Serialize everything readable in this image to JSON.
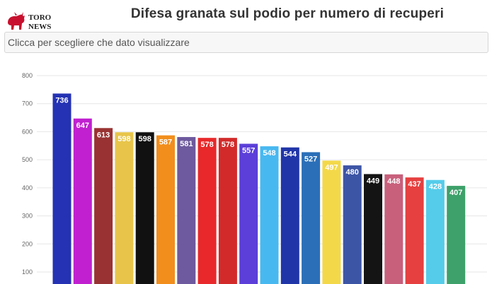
{
  "header": {
    "logo_text_top": "TORO",
    "logo_text_bottom": "NEWS",
    "title": "Difesa granata sul podio per numero di recuperi"
  },
  "selector": {
    "label": "Clicca per scegliere che dato visualizzare"
  },
  "colors": {
    "logo_red": "#c8102e",
    "grid": "#e6e6e6"
  },
  "chart_data": {
    "type": "bar",
    "title": "Difesa granata sul podio per numero di recuperi",
    "xlabel": "",
    "ylabel": "",
    "ylim": [
      0,
      800
    ],
    "yticks": [
      100,
      200,
      300,
      400,
      500,
      600,
      700,
      800
    ],
    "grid": true,
    "values": [
      736,
      647,
      613,
      598,
      598,
      587,
      581,
      578,
      578,
      557,
      548,
      544,
      527,
      497,
      480,
      449,
      448,
      437,
      428,
      407
    ],
    "bar_colors": [
      "#2432b3",
      "#c020d0",
      "#993333",
      "#e8c54a",
      "#111111",
      "#f28e1c",
      "#6e5a9e",
      "#e8282a",
      "#d22a2a",
      "#5b3fd8",
      "#48b8f0",
      "#2035a8",
      "#2a6fb8",
      "#f3d84a",
      "#3d55a5",
      "#141414",
      "#c8607c",
      "#e64040",
      "#55ccea",
      "#3ea06a"
    ],
    "label_colors": [
      "#ffffff",
      "#ffffff",
      "#ffffff",
      "#ffffff",
      "#ffffff",
      "#ffffff",
      "#ffffff",
      "#ffffff",
      "#ffffff",
      "#ffffff",
      "#ffffff",
      "#ffffff",
      "#ffffff",
      "#ffffff",
      "#ffffff",
      "#ffffff",
      "#ffffff",
      "#ffffff",
      "#ffffff",
      "#ffffff"
    ]
  }
}
